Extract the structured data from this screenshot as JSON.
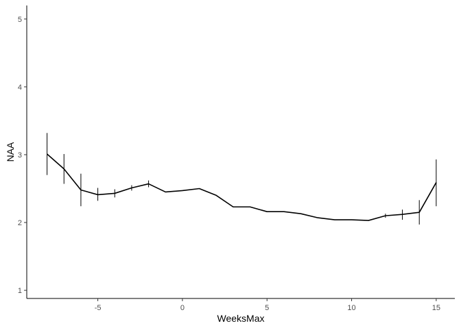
{
  "chart_data": {
    "type": "line",
    "title": "",
    "xlabel": "WeeksMax",
    "ylabel": "NAA",
    "xlim": [
      -9.2,
      16.1
    ],
    "ylim": [
      0.88,
      5.2
    ],
    "x_ticks": [
      -5,
      0,
      5,
      10,
      15
    ],
    "y_ticks": [
      1,
      2,
      3,
      4,
      5
    ],
    "grid": false,
    "legend": "none",
    "colors": {
      "line": "#000000",
      "axis": "#000000",
      "tick_label": "#4d4d4d",
      "background": "#ffffff"
    },
    "series": [
      {
        "x": [
          -8,
          -7,
          -6,
          -5,
          -4,
          -3,
          -2,
          -1,
          0,
          1,
          2,
          3,
          4,
          5,
          6,
          7,
          8,
          9,
          10,
          11,
          12,
          13,
          14,
          15
        ],
        "y": [
          3.01,
          2.79,
          2.48,
          2.41,
          2.43,
          2.51,
          2.57,
          2.45,
          2.47,
          2.5,
          2.4,
          2.23,
          2.23,
          2.16,
          2.16,
          2.13,
          2.07,
          2.04,
          2.04,
          2.03,
          2.1,
          2.12,
          2.15,
          2.59
        ],
        "error_bars": [
          {
            "x": -8,
            "low": 2.7,
            "high": 3.32
          },
          {
            "x": -7,
            "low": 2.57,
            "high": 3.01
          },
          {
            "x": -6,
            "low": 2.24,
            "high": 2.72
          },
          {
            "x": -5,
            "low": 2.32,
            "high": 2.51
          },
          {
            "x": -4,
            "low": 2.37,
            "high": 2.49
          },
          {
            "x": -3,
            "low": 2.47,
            "high": 2.55
          },
          {
            "x": -2,
            "low": 2.52,
            "high": 2.62
          },
          {
            "x": 12,
            "low": 2.07,
            "high": 2.13
          },
          {
            "x": 13,
            "low": 2.04,
            "high": 2.19
          },
          {
            "x": 14,
            "low": 1.97,
            "high": 2.33
          },
          {
            "x": 15,
            "low": 2.24,
            "high": 2.93
          }
        ]
      }
    ]
  }
}
